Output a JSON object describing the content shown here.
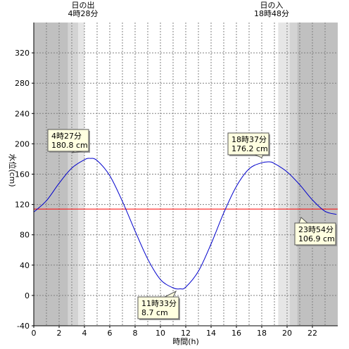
{
  "chart_data": {
    "type": "line",
    "xlabel": "時間(h)",
    "ylabel": "水位(cm)",
    "xlim": [
      0,
      24
    ],
    "ylim": [
      -40,
      360
    ],
    "xticks": [
      0,
      2,
      4,
      6,
      8,
      10,
      12,
      14,
      16,
      18,
      20,
      22
    ],
    "yticks": [
      -40,
      0,
      40,
      80,
      120,
      160,
      200,
      240,
      280,
      320
    ],
    "grid": true,
    "reference_level": 114,
    "sunrise": {
      "title": "日の出",
      "time": "4時28分",
      "hour": 4.47
    },
    "sunset": {
      "title": "日の入",
      "time": "18時48分",
      "hour": 18.8
    },
    "shading": {
      "night_dark": [
        [
          0,
          2.7
        ],
        [
          20.8,
          24
        ]
      ],
      "twilight_mid": [
        [
          2.7,
          3.5
        ],
        [
          20.2,
          20.8
        ]
      ],
      "twilight_light": [
        [
          3.5,
          4.0
        ],
        [
          19.3,
          20.2
        ]
      ]
    },
    "extremes": [
      {
        "time": "4時27分",
        "value": "180.8 cm",
        "hour": 4.45,
        "level": 180.8
      },
      {
        "time": "11時33分",
        "value": "8.7 cm",
        "hour": 11.55,
        "level": 8.7
      },
      {
        "time": "18時37分",
        "value": "176.2 cm",
        "hour": 18.62,
        "level": 176.2
      },
      {
        "time": "23時54分",
        "value": "106.9 cm",
        "hour": 23.9,
        "level": 106.9
      }
    ],
    "series": [
      {
        "color": "#0000cc",
        "x": [
          0,
          1,
          2,
          3,
          4,
          4.45,
          5,
          6,
          7,
          8,
          9,
          10,
          11,
          11.55,
          12,
          13,
          14,
          15,
          16,
          17,
          18,
          18.62,
          19,
          20,
          21,
          22,
          23,
          23.9
        ],
        "y": [
          110,
          125,
          148,
          168,
          179,
          180.8,
          178,
          158,
          124,
          85,
          48,
          21,
          10,
          8.7,
          11,
          32,
          68,
          109,
          144,
          167,
          175,
          176.2,
          174,
          163,
          146,
          126,
          111,
          106.9
        ]
      }
    ],
    "colors": {
      "line": "#0000cc",
      "reference": "#ff0000",
      "night_dark": "#c0c0c0",
      "twilight_mid": "#d3d3d3",
      "twilight_light": "#e6e6e6",
      "callout_bg": "#ffffe0"
    }
  }
}
